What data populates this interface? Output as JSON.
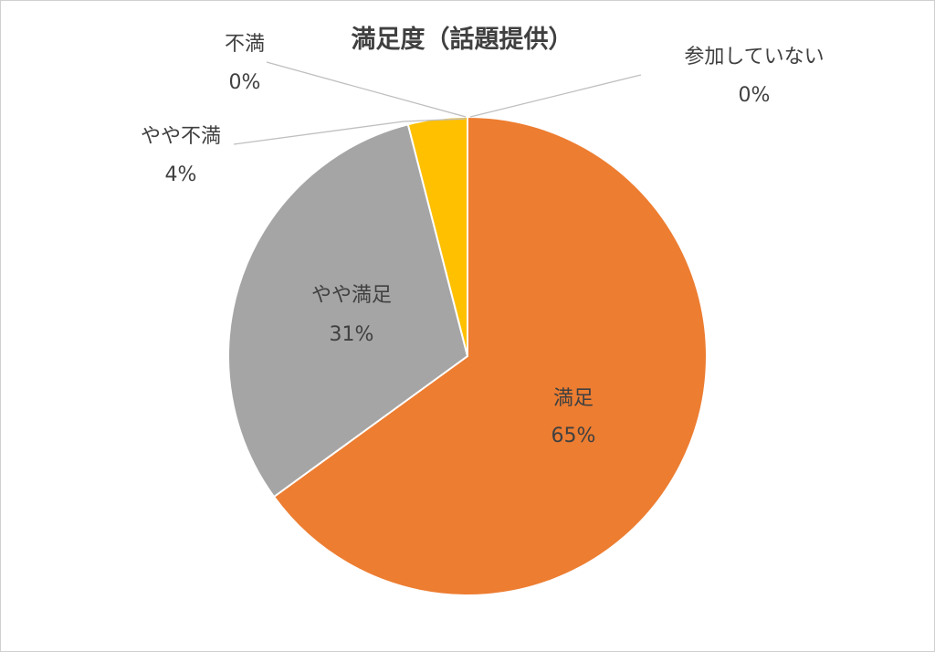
{
  "chart_data": {
    "type": "pie",
    "title": "満足度（話題提供）",
    "slices": [
      {
        "label": "満足",
        "value": 65,
        "value_text": "65%",
        "color": "#ED7D31"
      },
      {
        "label": "やや満足",
        "value": 31,
        "value_text": "31%",
        "color": "#A5A5A5"
      },
      {
        "label": "やや不満",
        "value": 4,
        "value_text": "4%",
        "color": "#FFC000"
      },
      {
        "label": "不満",
        "value": 0,
        "value_text": "0%",
        "color": "#5B9BD5"
      },
      {
        "label": "参加していない",
        "value": 0,
        "value_text": "0%",
        "color": "#4472C4"
      }
    ],
    "start_angle": "12-o'clock",
    "direction": "clockwise",
    "legend": "none"
  }
}
